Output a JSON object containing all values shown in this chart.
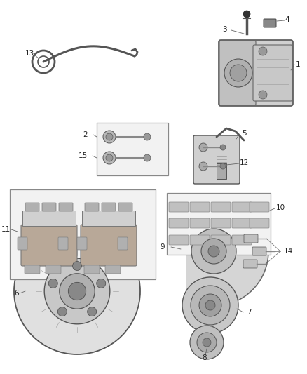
{
  "background_color": "#ffffff",
  "fig_w": 4.38,
  "fig_h": 5.33,
  "dpi": 100,
  "label_fs": 7.5,
  "lc": "#555555",
  "gray1": "#d8d8d8",
  "gray2": "#c0c0c0",
  "gray3": "#e8e8e8",
  "gray4": "#aaaaaa",
  "gray5": "#888888",
  "dark": "#444444"
}
